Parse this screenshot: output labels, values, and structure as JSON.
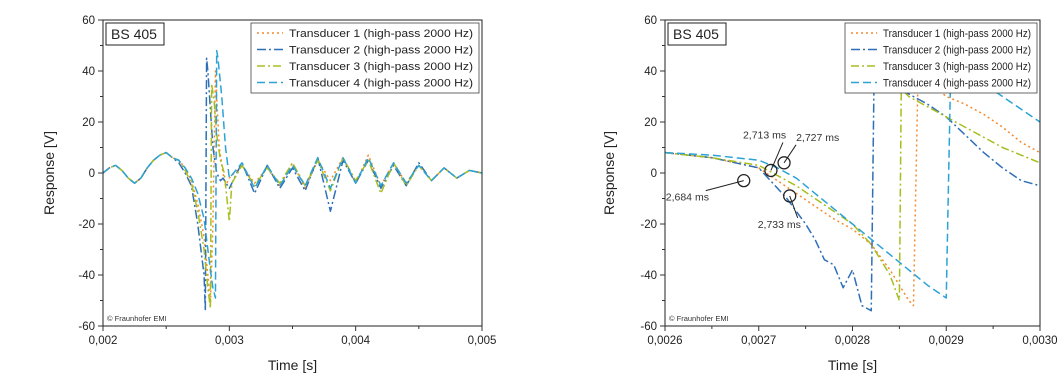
{
  "colors": {
    "t1": "#F58A2E",
    "t2": "#2E6FB8",
    "t3": "#A8BE1E",
    "t4": "#2BA3D6",
    "axis": "#333333",
    "frame": "#222222"
  },
  "chart_data": [
    {
      "type": "line",
      "badge": "BS 405",
      "copyright": "© Fraunhofer EMI",
      "xlabel": "Time [s]",
      "ylabel": "Response [V]",
      "xlim": [
        0.002,
        0.005
      ],
      "ylim": [
        -60,
        60
      ],
      "xticks": [
        0.002,
        0.003,
        0.004,
        0.005
      ],
      "xtick_labels": [
        "0,002",
        "0,003",
        "0,004",
        "0,005"
      ],
      "yticks": [
        -60,
        -40,
        -20,
        0,
        20,
        40,
        60
      ],
      "ytick_labels": [
        "-60",
        "-40",
        "-20",
        "0",
        "20",
        "40",
        "60"
      ],
      "grid": false,
      "legend_position": "top-right",
      "series": [
        {
          "name": "Transducer 1 (high-pass 2000 Hz)",
          "color_key": "t1",
          "dash": "2,3",
          "x": [
            0.002,
            0.00205,
            0.0021,
            0.00215,
            0.0022,
            0.00225,
            0.0023,
            0.00235,
            0.0024,
            0.00245,
            0.0025,
            0.00255,
            0.0026,
            0.00265,
            0.0027,
            0.00275,
            0.0028,
            0.00283,
            0.00285,
            0.00287,
            0.00289,
            0.0029,
            0.00292,
            0.00295,
            0.00297,
            0.003,
            0.0031,
            0.0032,
            0.0033,
            0.0034,
            0.0035,
            0.0036,
            0.0037,
            0.0038,
            0.0039,
            0.004,
            0.0041,
            0.0042,
            0.0043,
            0.0044,
            0.0045,
            0.0046,
            0.0047,
            0.0048,
            0.0049,
            0.005
          ],
          "y": [
            0,
            2,
            3,
            1,
            -2,
            -4,
            -2,
            2,
            5,
            7,
            8,
            6,
            5,
            2,
            -3,
            -12,
            -25,
            -40,
            -52,
            -20,
            40,
            30,
            10,
            0,
            -5,
            -2,
            3,
            -4,
            2,
            -5,
            4,
            -6,
            5,
            -3,
            6,
            -4,
            7,
            -5,
            4,
            -4,
            3,
            -3,
            2,
            -2,
            1,
            0
          ]
        },
        {
          "name": "Transducer 2 (high-pass 2000 Hz)",
          "color_key": "t2",
          "dash": "9,3,2,3",
          "x": [
            0.002,
            0.00205,
            0.0021,
            0.00215,
            0.0022,
            0.00225,
            0.0023,
            0.00235,
            0.0024,
            0.00245,
            0.0025,
            0.00255,
            0.0026,
            0.00265,
            0.0027,
            0.00275,
            0.0028,
            0.00281,
            0.00282,
            0.00283,
            0.00285,
            0.00287,
            0.0029,
            0.00293,
            0.00295,
            0.003,
            0.0031,
            0.0032,
            0.0033,
            0.0034,
            0.0035,
            0.0036,
            0.0037,
            0.0038,
            0.0039,
            0.004,
            0.0041,
            0.0042,
            0.0043,
            0.0044,
            0.0045,
            0.0046,
            0.0047,
            0.0048,
            0.0049,
            0.005
          ],
          "y": [
            0,
            2,
            3,
            1,
            -2,
            -4,
            -2,
            2,
            5,
            7,
            8,
            6,
            4,
            0,
            -5,
            -20,
            -40,
            -54,
            45,
            40,
            25,
            10,
            0,
            -3,
            -2,
            -6,
            4,
            -8,
            3,
            -6,
            2,
            -7,
            6,
            -15,
            5,
            -4,
            5,
            -6,
            3,
            -5,
            4,
            -3,
            2,
            -2,
            1,
            0
          ]
        },
        {
          "name": "Transducer 3 (high-pass 2000 Hz)",
          "color_key": "t3",
          "dash": "8,3,2,3",
          "x": [
            0.002,
            0.00205,
            0.0021,
            0.00215,
            0.0022,
            0.00225,
            0.0023,
            0.00235,
            0.0024,
            0.00245,
            0.0025,
            0.00255,
            0.0026,
            0.00265,
            0.0027,
            0.00275,
            0.0028,
            0.00283,
            0.00285,
            0.00286,
            0.00288,
            0.0029,
            0.00293,
            0.00296,
            0.003,
            0.00302,
            0.0031,
            0.0032,
            0.0033,
            0.0034,
            0.0035,
            0.0036,
            0.0037,
            0.0038,
            0.0039,
            0.004,
            0.0041,
            0.0042,
            0.0043,
            0.0044,
            0.0045,
            0.0046,
            0.0047,
            0.0048,
            0.0049,
            0.005
          ],
          "y": [
            0,
            2,
            3,
            1,
            -2,
            -4,
            -2,
            2,
            5,
            7,
            8,
            6,
            5,
            1,
            -4,
            -15,
            -30,
            -45,
            -53,
            35,
            28,
            15,
            5,
            0,
            -19,
            -4,
            3,
            -5,
            2,
            -4,
            4,
            -5,
            5,
            -7,
            6,
            -3,
            5,
            -8,
            4,
            -5,
            3,
            -3,
            2,
            -2,
            1,
            0
          ]
        },
        {
          "name": "Transducer 4 (high-pass 2000 Hz)",
          "color_key": "t4",
          "dash": "8,4",
          "x": [
            0.002,
            0.00205,
            0.0021,
            0.00215,
            0.0022,
            0.00225,
            0.0023,
            0.00235,
            0.0024,
            0.00245,
            0.0025,
            0.00255,
            0.0026,
            0.00265,
            0.0027,
            0.00275,
            0.0028,
            0.00283,
            0.00285,
            0.00287,
            0.00289,
            0.0029,
            0.00291,
            0.00294,
            0.00297,
            0.003,
            0.0031,
            0.0032,
            0.0033,
            0.0034,
            0.0035,
            0.0036,
            0.0037,
            0.0038,
            0.0039,
            0.004,
            0.0041,
            0.0042,
            0.0043,
            0.0044,
            0.0045,
            0.0046,
            0.0047,
            0.0048,
            0.0049,
            0.005
          ],
          "y": [
            0,
            2,
            3,
            1,
            -2,
            -4,
            -2,
            2,
            5,
            7,
            8,
            6,
            5,
            2,
            -2,
            -8,
            -18,
            -30,
            -38,
            -45,
            -49,
            48,
            45,
            30,
            10,
            -2,
            4,
            -6,
            3,
            -5,
            3,
            -5,
            6,
            -6,
            6,
            -4,
            6,
            -5,
            4,
            -4,
            3,
            -3,
            2,
            -2,
            1,
            0
          ]
        }
      ]
    },
    {
      "type": "line",
      "badge": "BS 405",
      "copyright": "© Fraunhofer EMI",
      "xlabel": "Time [s]",
      "ylabel": "Response [V]",
      "xlim": [
        0.0026,
        0.003
      ],
      "ylim": [
        -60,
        60
      ],
      "xticks": [
        0.0026,
        0.0027,
        0.0028,
        0.0029,
        0.003
      ],
      "xtick_labels": [
        "0,0026",
        "0,0027",
        "0,0028",
        "0,0029",
        "0,0030"
      ],
      "yticks": [
        -60,
        -40,
        -20,
        0,
        20,
        40,
        60
      ],
      "ytick_labels": [
        "-60",
        "-40",
        "-20",
        "0",
        "20",
        "40",
        "60"
      ],
      "grid": false,
      "legend_position": "top-right",
      "annotations": [
        {
          "label": "2,684 ms",
          "x": 0.002684,
          "y": -3
        },
        {
          "label": "2,713 ms",
          "x": 0.002713,
          "y": 1
        },
        {
          "label": "2,727 ms",
          "x": 0.002727,
          "y": 4
        },
        {
          "label": "2,733 ms",
          "x": 0.002733,
          "y": -9
        }
      ],
      "series": [
        {
          "name": "Transducer 1 (high-pass 2000 Hz)",
          "color_key": "t1",
          "dash": "2,3",
          "x": [
            0.0026,
            0.00265,
            0.0027,
            0.00272,
            0.00274,
            0.00276,
            0.00278,
            0.0028,
            0.00282,
            0.00284,
            0.00286,
            0.002865,
            0.00287,
            0.00288,
            0.0029,
            0.00292,
            0.00294,
            0.00296,
            0.00298,
            0.003
          ],
          "y": [
            8,
            6,
            2,
            -3,
            -8,
            -13,
            -18,
            -22,
            -28,
            -38,
            -50,
            -52,
            40,
            36,
            30,
            27,
            23,
            18,
            12,
            8
          ]
        },
        {
          "name": "Transducer 2 (high-pass 2000 Hz)",
          "color_key": "t2",
          "dash": "9,3,2,3",
          "x": [
            0.0026,
            0.00265,
            0.0027,
            0.00271,
            0.00272,
            0.00273,
            0.00274,
            0.00275,
            0.00276,
            0.00277,
            0.00278,
            0.00279,
            0.0028,
            0.00281,
            0.00282,
            0.002823,
            0.00284,
            0.00286,
            0.00288,
            0.0029,
            0.00292,
            0.00294,
            0.00296,
            0.00298,
            0.003
          ],
          "y": [
            8,
            6,
            2,
            -2,
            -6,
            -10,
            -15,
            -20,
            -26,
            -34,
            -36,
            -45,
            -38,
            -52,
            -54,
            38,
            34,
            31,
            27,
            22,
            15,
            8,
            2,
            -3,
            -5
          ]
        },
        {
          "name": "Transducer 3 (high-pass 2000 Hz)",
          "color_key": "t3",
          "dash": "8,3,2,3",
          "x": [
            0.0026,
            0.00265,
            0.0027,
            0.00272,
            0.00274,
            0.00276,
            0.00278,
            0.0028,
            0.00282,
            0.00284,
            0.00285,
            0.002852,
            0.00286,
            0.00288,
            0.0029,
            0.00292,
            0.00294,
            0.00296,
            0.00298,
            0.003
          ],
          "y": [
            8,
            6,
            3,
            -1,
            -5,
            -10,
            -15,
            -20,
            -28,
            -40,
            -50,
            33,
            30,
            26,
            22,
            18,
            14,
            10,
            7,
            4
          ]
        },
        {
          "name": "Transducer 4 (high-pass 2000 Hz)",
          "color_key": "t4",
          "dash": "8,4",
          "x": [
            0.0026,
            0.00265,
            0.0027,
            0.00272,
            0.00274,
            0.00276,
            0.00278,
            0.0028,
            0.00282,
            0.00284,
            0.00286,
            0.00288,
            0.0029,
            0.002905,
            0.00292,
            0.00294,
            0.00296,
            0.00298,
            0.003
          ],
          "y": [
            8,
            7,
            5,
            2,
            -2,
            -8,
            -14,
            -20,
            -26,
            -32,
            -38,
            -44,
            -49,
            45,
            40,
            35,
            30,
            25,
            20
          ]
        }
      ]
    }
  ]
}
